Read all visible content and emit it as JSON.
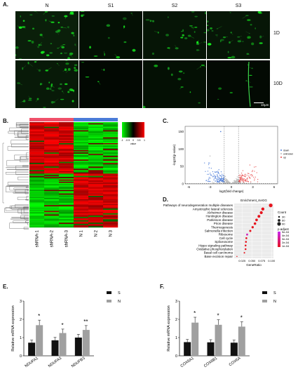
{
  "panelA": {
    "label": "A.",
    "columns": [
      "N",
      "S1",
      "S2",
      "S3"
    ],
    "rows": [
      "1D",
      "10D"
    ],
    "scale_bar": "10μm"
  },
  "panelB": {
    "label": "B.",
    "samples": [
      "shRNA-1",
      "shRNA-2",
      "shRNA-3",
      "N 1",
      "N 2",
      "N 3"
    ],
    "legend_ticks": [
      "-1",
      "-0.5",
      "0",
      "0.5",
      "1"
    ],
    "legend_title": "value",
    "group_colors": [
      "#f0506a",
      "#4a7bd8"
    ]
  },
  "panelC": {
    "label": "C.",
    "xlabel": "log2(fold change)",
    "ylabel": "-log10(p-value)",
    "xticks": [
      "-6",
      "-3",
      "0",
      "3",
      "6"
    ],
    "yticks": [
      "0",
      "50",
      "100",
      "150"
    ],
    "legend": [
      "down",
      "unknown",
      "up"
    ]
  },
  "panelD": {
    "label": "D.",
    "title": "Enrichment_KeGG",
    "xlabel": "GeneRatio",
    "xticks": [
      "0.025",
      "0.050",
      "0.075",
      "0.100"
    ],
    "count_title": "Count",
    "count_levels": [
      "30",
      "60",
      "90"
    ],
    "padj_title": "p.adjust",
    "padj_levels": [
      "5e-04",
      "4e-04",
      "3e-04",
      "2e-04",
      "1e-04"
    ],
    "terms": [
      {
        "name": "Pathways of neurodegeneration multiple diseases",
        "ratio": 0.098,
        "count": 90,
        "padj": 0.0001
      },
      {
        "name": "Amyotrophic lateral sclerosis",
        "ratio": 0.078,
        "count": 72,
        "padj": 0.0001
      },
      {
        "name": "Alzheimer disease",
        "ratio": 0.074,
        "count": 68,
        "padj": 0.0001
      },
      {
        "name": "Huntington disease",
        "ratio": 0.068,
        "count": 62,
        "padj": 0.0001
      },
      {
        "name": "Parkinson disease",
        "ratio": 0.062,
        "count": 56,
        "padj": 0.0001
      },
      {
        "name": "Prion disease",
        "ratio": 0.058,
        "count": 52,
        "padj": 0.0001
      },
      {
        "name": "Thermogenesis",
        "ratio": 0.052,
        "count": 48,
        "padj": 0.0001
      },
      {
        "name": "Salmonella infection",
        "ratio": 0.046,
        "count": 42,
        "padj": 0.0001
      },
      {
        "name": "Ribosome",
        "ratio": 0.038,
        "count": 36,
        "padj": 0.0004
      },
      {
        "name": "Cell cycle",
        "ratio": 0.036,
        "count": 34,
        "padj": 0.0001
      },
      {
        "name": "Spliceosome",
        "ratio": 0.035,
        "count": 32,
        "padj": 0.0001
      },
      {
        "name": "Hippo signaling pathway",
        "ratio": 0.034,
        "count": 31,
        "padj": 0.0001
      },
      {
        "name": "Oxidative phosphorylation",
        "ratio": 0.034,
        "count": 30,
        "padj": 0.0001
      },
      {
        "name": "Basal cell carcinoma",
        "ratio": 0.031,
        "count": 20,
        "padj": 0.0001
      },
      {
        "name": "Base excision repair",
        "ratio": 0.012,
        "count": 8,
        "padj": 0.0001
      }
    ]
  },
  "panelE": {
    "label": "E.",
    "ylabel": "Relative mRNA expression",
    "yticks": [
      "0",
      "1",
      "2",
      "3"
    ],
    "legend": [
      "S",
      "N"
    ],
    "colors": [
      "#111111",
      "#a0a0a0"
    ],
    "categories": [
      "NDUFA1",
      "NDUFA3",
      "NDUFB3"
    ],
    "S": [
      0.72,
      0.85,
      1.0
    ],
    "N": [
      1.68,
      1.25,
      1.42
    ],
    "sig": [
      "*",
      "*",
      "**"
    ]
  },
  "panelF": {
    "label": "F.",
    "ylabel": "Relative mRNA expression",
    "yticks": [
      "0",
      "1",
      "2",
      "3"
    ],
    "legend": [
      "S",
      "N"
    ],
    "colors": [
      "#111111",
      "#a0a0a0"
    ],
    "categories": [
      "COX6A1",
      "COX6B1",
      "COX6A"
    ],
    "S": [
      0.75,
      0.74,
      0.72
    ],
    "N": [
      1.82,
      1.7,
      1.6
    ],
    "sig": [
      "*",
      "*",
      "*"
    ]
  }
}
